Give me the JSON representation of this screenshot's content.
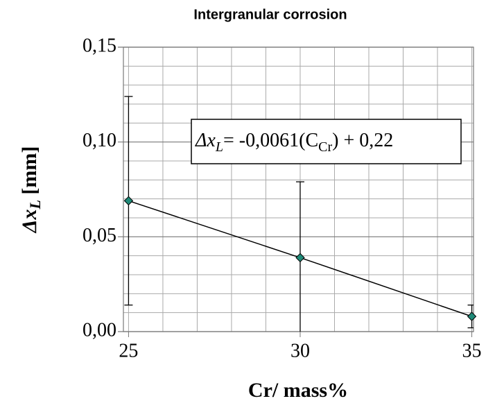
{
  "chart_data": {
    "type": "line",
    "title": "Intergranular corrosion",
    "x_label": "Cr/ mass%",
    "y_label": {
      "var": "Δx",
      "sub": "L",
      "rest": " [mm]"
    },
    "annotation": {
      "var": "Δx",
      "sub": "L",
      "mid": "= -0,0061(C",
      "sub2": "Cr",
      "end": ") + 0,22"
    },
    "x": [
      25,
      30,
      35
    ],
    "series": [
      {
        "name": "Δx",
        "color": "#1f8a78",
        "values": [
          0.069,
          0.039,
          0.008
        ],
        "errors": [
          0.055,
          0.04,
          0.006
        ]
      }
    ],
    "xlim": [
      24.85,
      35.05
    ],
    "ylim": [
      0,
      0.15
    ],
    "xticks": [
      25,
      30,
      35
    ],
    "yticks": [
      {
        "value": 0,
        "label": "0,00"
      },
      {
        "value": 0.05,
        "label": "0,05"
      },
      {
        "value": 0.1,
        "label": "0,10"
      },
      {
        "value": 0.15,
        "label": "0,15"
      }
    ],
    "x_gridlines": [
      25,
      26,
      27,
      28,
      29,
      30,
      31,
      32,
      33,
      34,
      35
    ],
    "y_gridlines": [
      0.01,
      0.02,
      0.03,
      0.04,
      0.06,
      0.07,
      0.08,
      0.09,
      0.11,
      0.12,
      0.13,
      0.14
    ],
    "grid": true
  }
}
